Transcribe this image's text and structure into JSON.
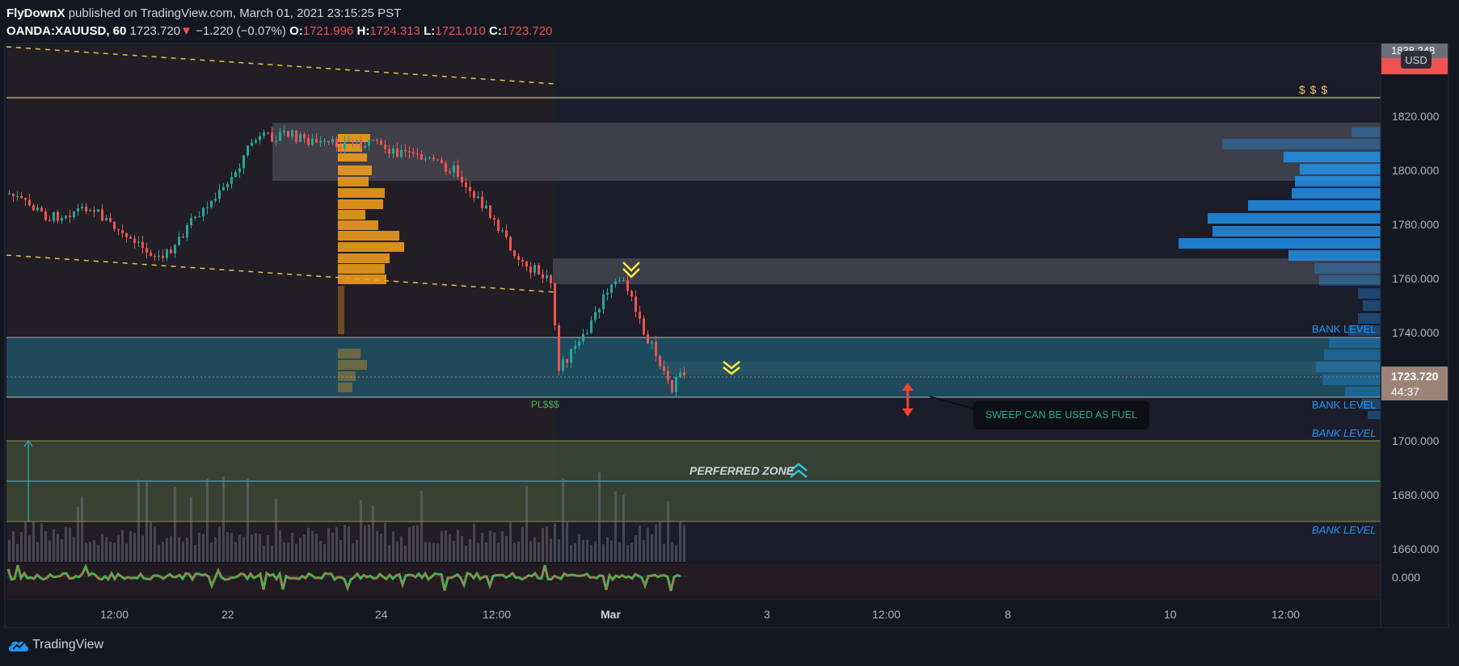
{
  "header": {
    "author": "FlyDownX",
    "published_text": "published on TradingView.com, March 01, 2021 23:15:25 PST",
    "symbol": "OANDA:XAUUSD, 60",
    "last_price": "1723.720",
    "change_arrow": "▼",
    "change": "−1.220 (−0.07%)",
    "open_label": "O:",
    "open": "1721.996",
    "high_label": "H:",
    "high": "1724.313",
    "low_label": "L:",
    "low": "1721.010",
    "close_label": "C:",
    "close": "1723.720"
  },
  "price_axis": {
    "currency_badge": "USD",
    "top_tag": "1838.248",
    "labels": [
      "1820.000",
      "1800.000",
      "1780.000",
      "1760.000",
      "1740.000",
      "1700.000",
      "1680.000",
      "1660.000"
    ],
    "current_price": "1723.720",
    "countdown": "44:37",
    "oscillator_zero": "0.000"
  },
  "time_axis": {
    "labels": [
      "12:00",
      "22",
      "24",
      "12:00",
      "Mar",
      "3",
      "12:00",
      "8",
      "10",
      "12:00"
    ],
    "bold_label": "Mar"
  },
  "annotations": {
    "bank_level_1": "BANK LEVEL",
    "bank_level_2": "BANK LEVEL",
    "bank_level_3": "BANK LEVEL",
    "bank_level_4": "BANK LEVEL",
    "sweep_note": "SWEEP CAN BE USED AS FUEL",
    "preferred_zone": "PERFERRED ZONE",
    "dollars": "$ $ $",
    "pl_dollars": "PL$$$"
  },
  "footer": {
    "brand": "TradingView"
  },
  "colors": {
    "background": "#131722",
    "bull": "#26a69a",
    "bear": "#ef5350",
    "volume_profile": "#2196f3",
    "session_profile": "#f7a21b",
    "zone_teal": "#1f5a6e",
    "zone_olive": "#4a5a3a",
    "arrow_yellow": "#ffeb3b",
    "arrow_red": "#f44336",
    "arrow_cyan": "#26c6da"
  },
  "icons": {
    "chevrons_down": "double-chevron-down-icon",
    "chevrons_up": "double-chevron-up-icon",
    "vertical_double_arrow": "double-arrow-vertical-icon",
    "logo": "tradingview-cloud-logo-icon"
  }
}
